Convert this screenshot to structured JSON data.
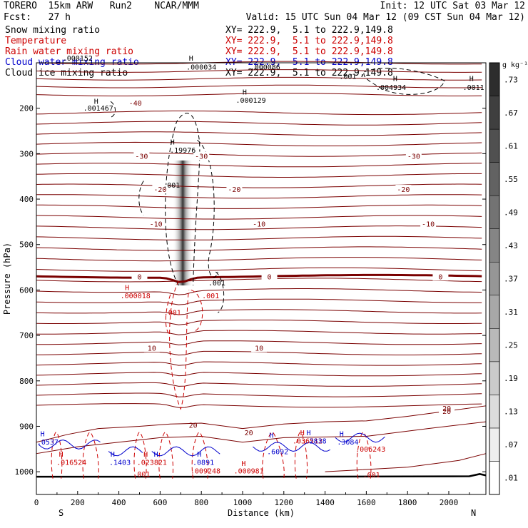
{
  "header": {
    "line1_left": "TORERO  15km ARW   Run2    NCAR/MMM",
    "line1_right": "Init: 12 UTC Sat 03 Mar 12",
    "line2_left": "Fcst:   27 h",
    "line2_right": "Valid: 15 UTC Sun 04 Mar 12 (09 CST Sun 04 Mar 12)",
    "legend": [
      {
        "label": "Snow mixing ratio",
        "xy": "XY= 222.9,  5.1 to 222.9,149.8",
        "color": "#000000"
      },
      {
        "label": "Temperature",
        "xy": "XY= 222.9,  5.1 to 222.9,149.8",
        "color": "#cc0000"
      },
      {
        "label": "Rain water mixing ratio",
        "xy": "XY= 222.9,  5.1 to 222.9,149.8",
        "color": "#cc0000"
      },
      {
        "label": "Cloud water mixing ratio",
        "xy": "XY= 222.9,  5.1 to 222.9,149.8",
        "color": "#0000cc"
      },
      {
        "label": "Cloud ice mixing ratio",
        "xy": "XY= 222.9,  5.1 to 222.9,149.8",
        "color": "#000000"
      }
    ]
  },
  "chart_data": {
    "type": "cross-section",
    "xlabel": "Distance (km)",
    "ylabel": "Pressure (hPa)",
    "xlim": [
      0,
      2180
    ],
    "ylim": [
      1050,
      100
    ],
    "xticks": [
      0,
      200,
      400,
      600,
      800,
      1000,
      1200,
      1400,
      1600,
      1800,
      2000
    ],
    "yticks": [
      200,
      300,
      400,
      500,
      600,
      700,
      800,
      900,
      1000
    ],
    "x_end_labels": {
      "left": "S",
      "right": "N"
    },
    "colorbar": {
      "unit": "g kg⁻¹",
      "levels": [
        0.01,
        0.07,
        0.13,
        0.19,
        0.25,
        0.31,
        0.37,
        0.43,
        0.49,
        0.55,
        0.61,
        0.67,
        0.73
      ],
      "labels": [
        ".01",
        ".07",
        ".13",
        ".19",
        ".25",
        ".31",
        ".37",
        ".43",
        ".49",
        ".55",
        ".61",
        ".67",
        ".73"
      ]
    },
    "temperature_isotherms": [
      {
        "label": "-40",
        "pressure_hpa": 188
      },
      {
        "label": "-30",
        "pressure_hpa": 305
      },
      {
        "label": "-20",
        "pressure_hpa": 378
      },
      {
        "label": "-10",
        "pressure_hpa": 454
      },
      {
        "label": "0",
        "pressure_hpa": 570
      },
      {
        "label": "10",
        "pressure_hpa": 727
      },
      {
        "label": "20",
        "pressure_hpa": 866
      }
    ],
    "annotations": [
      {
        "text": "H",
        "x_km": 290,
        "p_hpa": 190,
        "color": "#000000"
      },
      {
        "text": ".001467",
        "x_km": 300,
        "p_hpa": 205,
        "color": "#000000"
      },
      {
        "text": "H",
        "x_km": 1010,
        "p_hpa": 170,
        "color": "#000000"
      },
      {
        "text": ".000129",
        "x_km": 1040,
        "p_hpa": 188,
        "color": "#000000"
      },
      {
        "text": "H",
        "x_km": 660,
        "p_hpa": 280,
        "color": "#000000"
      },
      {
        "text": ".19976",
        "x_km": 710,
        "p_hpa": 298,
        "color": "#000000"
      },
      {
        "text": ".001",
        "x_km": 655,
        "p_hpa": 375,
        "color": "#000000"
      },
      {
        "text": ".001",
        "x_km": 875,
        "p_hpa": 590,
        "color": "#000000"
      },
      {
        "text": "H",
        "x_km": 750,
        "p_hpa": 95,
        "color": "#000000"
      },
      {
        "text": ".000034",
        "x_km": 800,
        "p_hpa": 115,
        "color": "#000000"
      },
      {
        "text": ".000086",
        "x_km": 1110,
        "p_hpa": 115,
        "color": "#000000"
      },
      {
        "text": ".000152",
        "x_km": 200,
        "p_hpa": 95,
        "color": "#000000"
      },
      {
        "text": ".001",
        "x_km": 1510,
        "p_hpa": 135,
        "color": "#000000"
      },
      {
        "text": "H",
        "x_km": 1740,
        "p_hpa": 140,
        "color": "#000000"
      },
      {
        "text": ".004934",
        "x_km": 1720,
        "p_hpa": 160,
        "color": "#000000"
      },
      {
        "text": "H",
        "x_km": 2110,
        "p_hpa": 140,
        "color": "#000000"
      },
      {
        "text": ".0011",
        "x_km": 2120,
        "p_hpa": 160,
        "color": "#000000"
      },
      {
        "text": "H",
        "x_km": 440,
        "p_hpa": 600,
        "color": "#cc0000"
      },
      {
        "text": ".000018",
        "x_km": 480,
        "p_hpa": 618,
        "color": "#cc0000"
      },
      {
        "text": ".001",
        "x_km": 845,
        "p_hpa": 618,
        "color": "#cc0000"
      },
      {
        "text": ".001",
        "x_km": 660,
        "p_hpa": 655,
        "color": "#cc0000"
      },
      {
        "text": "H",
        "x_km": 30,
        "p_hpa": 922,
        "color": "#0000cc"
      },
      {
        "text": ".0537",
        "x_km": 55,
        "p_hpa": 940,
        "color": "#0000cc"
      },
      {
        "text": "H",
        "x_km": 120,
        "p_hpa": 967,
        "color": "#cc0000"
      },
      {
        "text": ".016524",
        "x_km": 170,
        "p_hpa": 985,
        "color": "#cc0000"
      },
      {
        "text": "H",
        "x_km": 370,
        "p_hpa": 967,
        "color": "#0000cc"
      },
      {
        "text": ".1403",
        "x_km": 405,
        "p_hpa": 985,
        "color": "#0000cc"
      },
      {
        "text": "H",
        "x_km": 530,
        "p_hpa": 967,
        "color": "#cc0000"
      },
      {
        "text": ".023821",
        "x_km": 560,
        "p_hpa": 985,
        "color": "#cc0000"
      },
      {
        "text": "H",
        "x_km": 580,
        "p_hpa": 967,
        "color": "#0000cc"
      },
      {
        "text": "H",
        "x_km": 790,
        "p_hpa": 967,
        "color": "#0000cc"
      },
      {
        "text": ".0891",
        "x_km": 810,
        "p_hpa": 985,
        "color": "#0000cc"
      },
      {
        "text": ".009248",
        "x_km": 820,
        "p_hpa": 1004,
        "color": "#cc0000"
      },
      {
        "text": ".001",
        "x_km": 510,
        "p_hpa": 1011,
        "color": "#cc0000"
      },
      {
        "text": "H",
        "x_km": 1005,
        "p_hpa": 987,
        "color": "#cc0000"
      },
      {
        "text": ".000981",
        "x_km": 1030,
        "p_hpa": 1004,
        "color": "#cc0000"
      },
      {
        "text": "H",
        "x_km": 1140,
        "p_hpa": 925,
        "color": "#0000cc"
      },
      {
        "text": ".6092",
        "x_km": 1170,
        "p_hpa": 961,
        "color": "#0000cc"
      },
      {
        "text": "H",
        "x_km": 1290,
        "p_hpa": 920,
        "color": "#cc0000"
      },
      {
        "text": "H",
        "x_km": 1320,
        "p_hpa": 920,
        "color": "#0000cc"
      },
      {
        "text": ".036512",
        "x_km": 1315,
        "p_hpa": 938,
        "color": "#cc0000"
      },
      {
        "text": ".2838",
        "x_km": 1355,
        "p_hpa": 938,
        "color": "#0000cc"
      },
      {
        "text": "H",
        "x_km": 1480,
        "p_hpa": 922,
        "color": "#0000cc"
      },
      {
        "text": ".3084",
        "x_km": 1510,
        "p_hpa": 940,
        "color": "#0000cc"
      },
      {
        "text": ".006243",
        "x_km": 1620,
        "p_hpa": 956,
        "color": "#cc0000"
      },
      {
        "text": ".001",
        "x_km": 1625,
        "p_hpa": 1012,
        "color": "#cc0000"
      },
      {
        "text": "20",
        "x_km": 760,
        "p_hpa": 903,
        "color": "#7a0000"
      },
      {
        "text": "20",
        "x_km": 1030,
        "p_hpa": 920,
        "color": "#7a0000"
      },
      {
        "text": "20",
        "x_km": 1990,
        "p_hpa": 866,
        "color": "#7a0000"
      }
    ]
  }
}
